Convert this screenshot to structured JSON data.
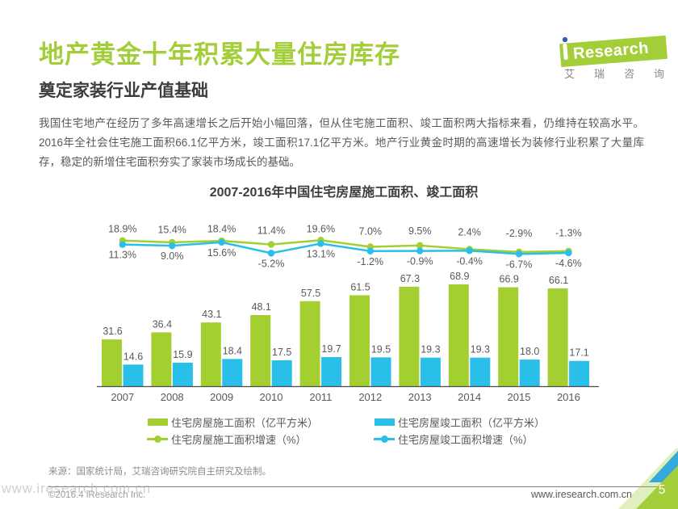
{
  "header": {
    "title": "地产黄金十年积累大量住房库存",
    "subtitle": "奠定家装行业产值基础",
    "body": "我国住宅地产在经历了多年高速增长之后开始小幅回落，但从住宅施工面积、竣工面积两大指标来看，仍维持在较高水平。2016年全社会住宅施工面积66.1亿平方米，竣工面积17.1亿平方米。地产行业黄金时期的高速增长为装修行业积累了大量库存，稳定的新增住宅面积夯实了家装市场成长的基础。"
  },
  "logo": {
    "brand": "Research",
    "subtext": "艾瑞咨询"
  },
  "chart_data": {
    "type": "bar+line",
    "title": "2007-2016年中国住宅房屋施工面积、竣工面积",
    "categories": [
      "2007",
      "2008",
      "2009",
      "2010",
      "2011",
      "2012",
      "2013",
      "2014",
      "2015",
      "2016"
    ],
    "series": [
      {
        "name": "住宅房屋施工面积（亿平方米）",
        "type": "bar",
        "color": "#a3d030",
        "values": [
          31.6,
          36.4,
          43.1,
          48.1,
          57.5,
          61.5,
          67.3,
          68.9,
          66.9,
          66.1
        ]
      },
      {
        "name": "住宅房屋竣工面积（亿平方米）",
        "type": "bar",
        "color": "#29bfe8",
        "values": [
          14.6,
          15.9,
          18.4,
          17.5,
          19.7,
          19.5,
          19.3,
          19.3,
          18.0,
          17.1
        ]
      },
      {
        "name": "住宅房屋施工面积增速（%）",
        "type": "line",
        "color": "#a3d030",
        "values": [
          18.9,
          15.4,
          18.4,
          11.4,
          19.6,
          7.0,
          9.5,
          2.4,
          -2.9,
          -1.3
        ]
      },
      {
        "name": "住宅房屋竣工面积增速（%）",
        "type": "line",
        "color": "#29bfe8",
        "values": [
          11.3,
          9.0,
          15.6,
          -5.2,
          13.1,
          -1.2,
          -0.9,
          -0.4,
          -6.7,
          -4.6
        ]
      }
    ],
    "legend_position": "bottom",
    "grid": false,
    "label_color": "#595959",
    "axis_color": "#4d4d4d"
  },
  "footer": {
    "source": "来源：国家统计局，艾瑞咨询研究院自主研究及绘制。",
    "copyright": "©2016.4 iResearch Inc.",
    "watermark": "www.iresearch.com.cn",
    "website": "www.iresearch.com.cn",
    "page_number": "5"
  },
  "colors": {
    "brand_green": "#a3ce39",
    "bar_green": "#a3d030",
    "bar_blue": "#29bfe8",
    "corner_blue": "#35a8dd",
    "logo_dot_blue": "#2f5fa5"
  }
}
